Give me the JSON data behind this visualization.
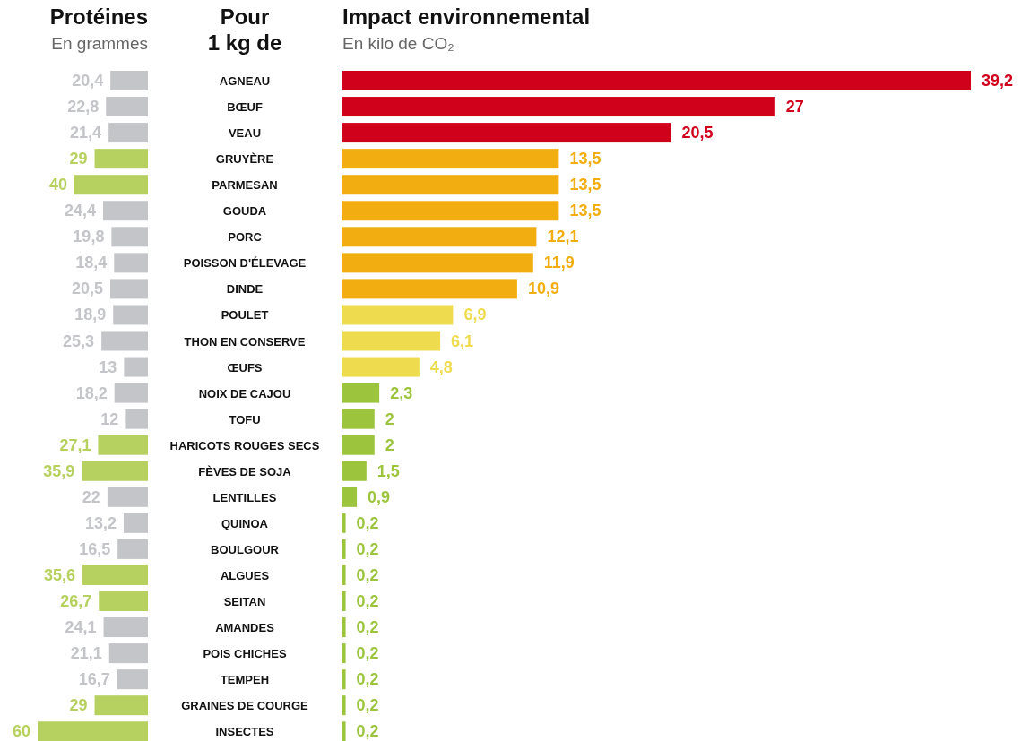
{
  "chart_data": [
    {
      "type": "bar",
      "orientation": "horizontal",
      "title": "Protéines",
      "subtitle": "En grammes",
      "ylabel": "Pour 1 kg de",
      "tick_labels": "y",
      "categories": [
        "AGNEAU",
        "BŒUF",
        "VEAU",
        "GRUYÈRE",
        "PARMESAN",
        "GOUDA",
        "PORC",
        "POISSON D'ÉLEVAGE",
        "DINDE",
        "POULET",
        "THON EN CONSERVE",
        "ŒUFS",
        "NOIX DE CAJOU",
        "TOFU",
        "HARICOTS ROUGES SECS",
        "FÈVES DE SOJA",
        "LENTILLES",
        "QUINOA",
        "BOULGOUR",
        "ALGUES",
        "SEITAN",
        "AMANDES",
        "POIS CHICHES",
        "TEMPEH",
        "GRAINES DE COURGE",
        "INSECTES"
      ],
      "values": [
        20.4,
        22.8,
        21.4,
        29,
        40,
        24.4,
        19.8,
        18.4,
        20.5,
        18.9,
        25.3,
        13,
        18.2,
        12,
        27.1,
        35.9,
        22,
        13.2,
        16.5,
        35.6,
        26.7,
        24.1,
        21.1,
        16.7,
        29,
        60
      ],
      "value_labels": [
        "20,4",
        "22,8",
        "21,4",
        "29",
        "40",
        "24,4",
        "19,8",
        "18,4",
        "20,5",
        "18,9",
        "25,3",
        "13",
        "18,2",
        "12",
        "27,1",
        "35,9",
        "22",
        "13,2",
        "16,5",
        "35,6",
        "26,7",
        "24,1",
        "21,1",
        "16,7",
        "29",
        "60"
      ],
      "colors": [
        "#c4c5c9",
        "#c4c5c9",
        "#c4c5c9",
        "#b6d160",
        "#b6d160",
        "#c4c5c9",
        "#c4c5c9",
        "#c4c5c9",
        "#c4c5c9",
        "#c4c5c9",
        "#c4c5c9",
        "#c4c5c9",
        "#c4c5c9",
        "#c4c5c9",
        "#b6d160",
        "#b6d160",
        "#c4c5c9",
        "#c4c5c9",
        "#c4c5c9",
        "#b6d160",
        "#b6d160",
        "#c4c5c9",
        "#c4c5c9",
        "#c4c5c9",
        "#b6d160",
        "#b6d160"
      ]
    },
    {
      "type": "bar",
      "orientation": "horizontal",
      "title": "Impact environnemental",
      "subtitle": "En kilo de CO₂",
      "tick_labels": false,
      "categories": [
        null,
        null,
        null,
        null,
        null,
        null,
        null,
        null,
        null,
        null,
        null,
        null,
        null,
        null,
        null,
        null,
        null,
        null,
        null,
        null,
        null,
        null,
        null,
        null,
        null,
        null
      ],
      "values": [
        39.2,
        27,
        20.5,
        13.5,
        13.5,
        13.5,
        12.1,
        11.9,
        10.9,
        6.9,
        6.1,
        4.8,
        2.3,
        2,
        2,
        1.5,
        0.9,
        0.2,
        0.2,
        0.2,
        0.2,
        0.2,
        0.2,
        0.2,
        0.2,
        0.2
      ],
      "value_labels": [
        "39,2",
        "27",
        "20,5",
        "13,5",
        "13,5",
        "13,5",
        "12,1",
        "11,9",
        "10,9",
        "6,9",
        "6,1",
        "4,8",
        "2,3",
        "2",
        "2",
        "1,5",
        "0,9",
        "0,2",
        "0,2",
        "0,2",
        "0,2",
        "0,2",
        "0,2",
        "0,2",
        "0,2",
        "0,2"
      ],
      "colors": [
        "#d0021b",
        "#d0021b",
        "#d0021b",
        "#f2ae10",
        "#f2ae10",
        "#f2ae10",
        "#f2ae10",
        "#f2ae10",
        "#f2ae10",
        "#eedc4e",
        "#eedc4e",
        "#eedc4e",
        "#9cc43c",
        "#9cc43c",
        "#9cc43c",
        "#9cc43c",
        "#9cc43c",
        "#9cc43c",
        "#9cc43c",
        "#9cc43c",
        "#9cc43c",
        "#9cc43c",
        "#9cc43c",
        "#9cc43c",
        "#9cc43c",
        "#9cc43c"
      ]
    }
  ]
}
